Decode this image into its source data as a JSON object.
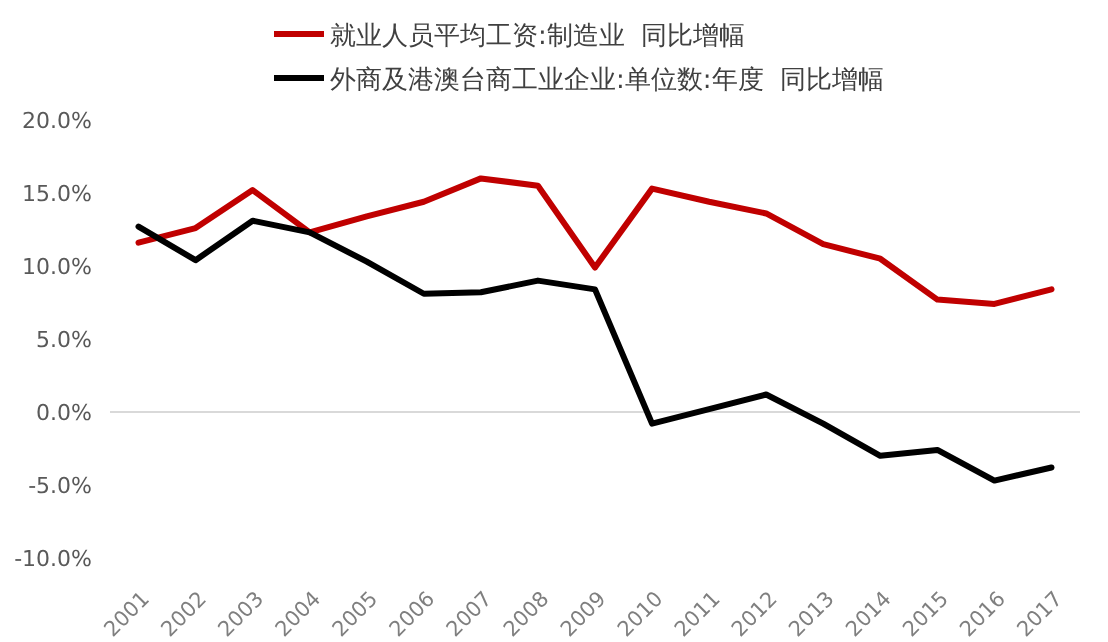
{
  "chart_data": {
    "type": "line",
    "categories": [
      "2001",
      "2002",
      "2003",
      "2004",
      "2005",
      "2006",
      "2007",
      "2008",
      "2009",
      "2010",
      "2011",
      "2012",
      "2013",
      "2014",
      "2015",
      "2016",
      "2017"
    ],
    "series": [
      {
        "name": "就业人员平均工资:制造业  同比增幅",
        "color": "#c00000",
        "values": [
          11.6,
          12.6,
          15.2,
          12.3,
          13.4,
          14.4,
          16.0,
          15.5,
          9.9,
          15.3,
          14.4,
          13.6,
          11.5,
          10.5,
          7.7,
          7.4,
          8.4
        ]
      },
      {
        "name": "外商及港澳台商工业企业:单位数:年度  同比增幅",
        "color": "#000000",
        "values": [
          12.7,
          10.4,
          13.1,
          12.3,
          10.3,
          8.1,
          8.2,
          9.0,
          8.4,
          -0.8,
          0.2,
          1.2,
          -0.8,
          -3.0,
          -2.6,
          -4.7,
          -3.8
        ]
      }
    ],
    "ylim": [
      -10,
      20
    ],
    "yticks": [
      {
        "value": -10,
        "label": "-10.0%"
      },
      {
        "value": -5,
        "label": "-5.0%"
      },
      {
        "value": 0,
        "label": "0.0%"
      },
      {
        "value": 5,
        "label": "5.0%"
      },
      {
        "value": 10,
        "label": "10.0%"
      },
      {
        "value": 15,
        "label": "15.0%"
      },
      {
        "value": 20,
        "label": "20.0%"
      }
    ],
    "ref_lines": [
      {
        "axis": "y",
        "value": 0,
        "color": "#d9d9d9"
      }
    ],
    "legend": "top",
    "marker": "none",
    "line_style": "solid"
  }
}
